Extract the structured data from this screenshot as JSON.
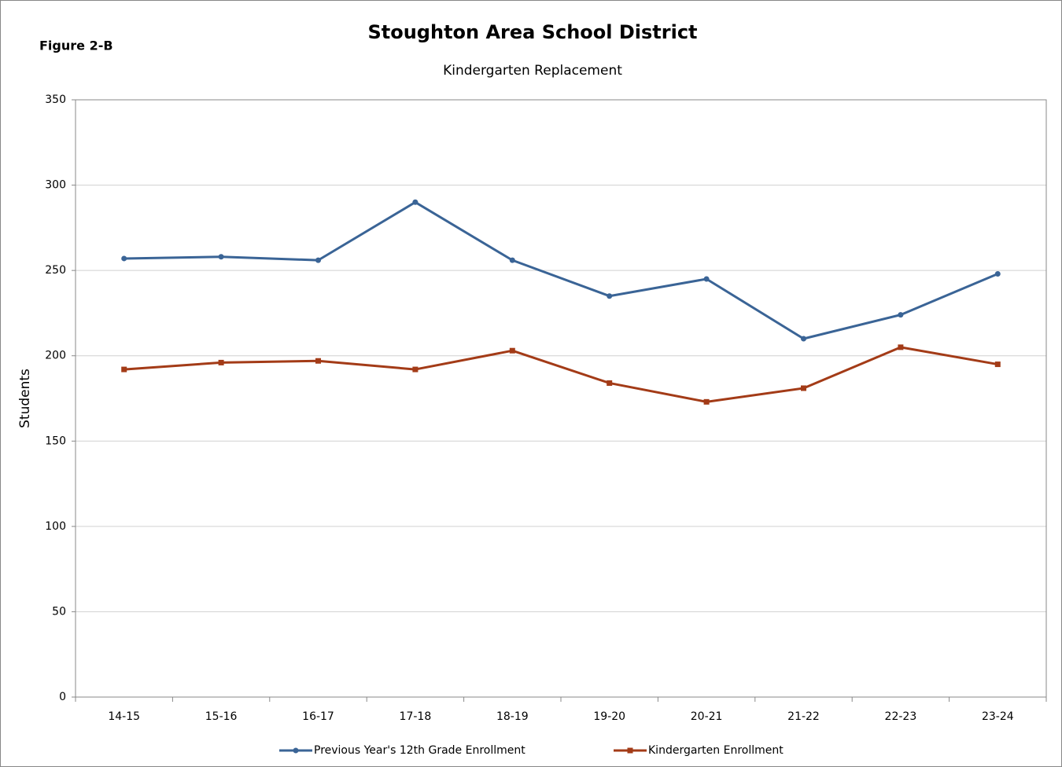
{
  "chart_data": {
    "type": "line",
    "title": "Stoughton Area School District",
    "subtitle": "Kindergarten Replacement",
    "annotation": "Figure 2-B",
    "y_label": "Students",
    "categories": [
      "14-15",
      "15-16",
      "16-17",
      "17-18",
      "18-19",
      "19-20",
      "20-21",
      "21-22",
      "22-23",
      "23-24"
    ],
    "series": [
      {
        "name": "Previous Year's 12th Grade Enrollment",
        "color": "#3a6496",
        "marker": "circle",
        "values": [
          257,
          258,
          256,
          290,
          256,
          235,
          245,
          210,
          224,
          248
        ]
      },
      {
        "name": "Kindergarten Enrollment",
        "color": "#a33b17",
        "marker": "square",
        "values": [
          192,
          196,
          197,
          192,
          203,
          184,
          173,
          181,
          205,
          195
        ]
      }
    ],
    "ylim": [
      0,
      350
    ],
    "yticks": [
      0,
      50,
      100,
      150,
      200,
      250,
      300,
      350
    ],
    "grid": true,
    "legend": "bottom"
  }
}
